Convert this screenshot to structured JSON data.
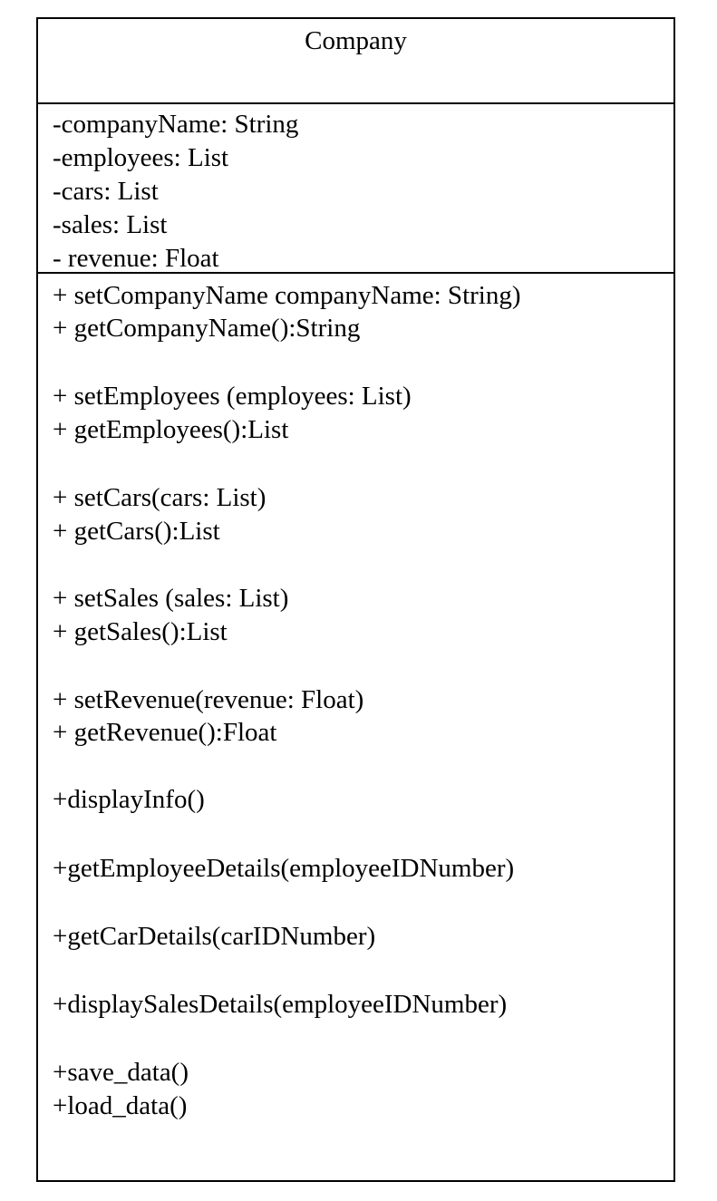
{
  "class": {
    "name": "Company",
    "attributes": [
      "-companyName: String",
      "-employees: List",
      "-cars: List",
      "-sales: List",
      "- revenue: Float"
    ],
    "operations": [
      "+ setCompanyName companyName: String)",
      "+ getCompanyName():String",
      "+ setEmployees (employees: List)",
      "+ getEmployees():List",
      "+ setCars(cars: List)",
      "+ getCars():List",
      "+ setSales (sales: List)",
      "+ getSales():List",
      "+ setRevenue(revenue: Float)",
      "+ getRevenue():Float",
      "+displayInfo()",
      "+getEmployeeDetails(employeeIDNumber)",
      "+getCarDetails(carIDNumber)",
      "+displaySalesDetails(employeeIDNumber)",
      "+save_data()",
      "+load_data()"
    ]
  }
}
